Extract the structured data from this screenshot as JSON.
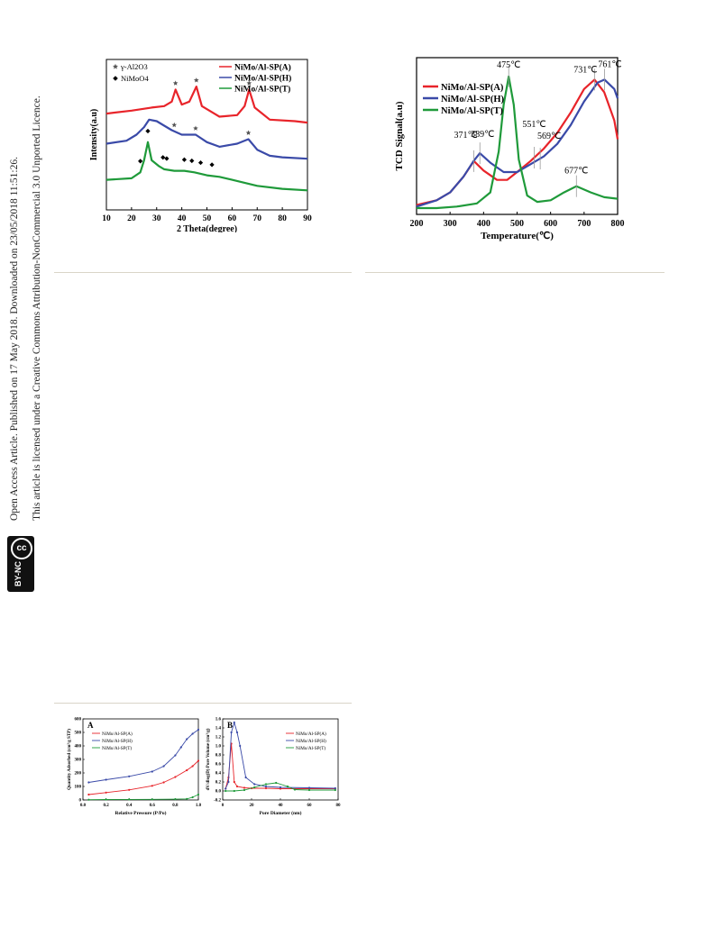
{
  "sidebar": {
    "line1": "Open Access Article. Published on 17 May 2018. Downloaded on 23/05/2018 11:51:26.",
    "line2": "This article is licensed under a Creative Commons Attribution-NonCommercial 3.0 Unported Licence.",
    "badge_cc": "cc",
    "badge_text": "BY-NC"
  },
  "colors": {
    "A": "#e8242a",
    "H": "#3a4aa8",
    "T": "#1f9a3a"
  },
  "chart_data": [
    {
      "id": "xrd",
      "type": "line",
      "xlabel": "2 Theta(degree)",
      "ylabel": "Intensity(a.u)",
      "xlim": [
        10,
        90
      ],
      "xticks": [
        "10",
        "20",
        "30",
        "40",
        "50",
        "60",
        "70",
        "80",
        "90"
      ],
      "legend_markers": [
        {
          "label": "γ-Al2O3",
          "symbol": "star"
        },
        {
          "label": "NiMoO4",
          "symbol": "diamond"
        }
      ],
      "series": [
        {
          "name": "NiMo/Al-SP(A)",
          "x": [
            10,
            20,
            28,
            33,
            36,
            37.5,
            40,
            43,
            45.8,
            48,
            55,
            62,
            65,
            66.8,
            69,
            75,
            85,
            90
          ],
          "y": [
            0.64,
            0.66,
            0.68,
            0.69,
            0.72,
            0.8,
            0.7,
            0.72,
            0.82,
            0.69,
            0.62,
            0.63,
            0.69,
            0.8,
            0.68,
            0.6,
            0.59,
            0.58
          ]
        },
        {
          "name": "NiMo/Al-SP(H)",
          "x": [
            10,
            18,
            22,
            25,
            27,
            30,
            33,
            36,
            40,
            45.5,
            50,
            55,
            62,
            66.5,
            70,
            75,
            80,
            90
          ],
          "y": [
            0.44,
            0.46,
            0.5,
            0.55,
            0.6,
            0.59,
            0.56,
            0.53,
            0.5,
            0.5,
            0.45,
            0.42,
            0.44,
            0.47,
            0.4,
            0.36,
            0.35,
            0.34
          ]
        },
        {
          "name": "NiMo/Al-SP(T)",
          "x": [
            10,
            20,
            23.5,
            25,
            26.5,
            28,
            31,
            33,
            37,
            41,
            45,
            50,
            55,
            60,
            65,
            70,
            80,
            90
          ],
          "y": [
            0.2,
            0.21,
            0.25,
            0.33,
            0.45,
            0.33,
            0.29,
            0.27,
            0.26,
            0.26,
            0.25,
            0.23,
            0.22,
            0.2,
            0.18,
            0.16,
            0.14,
            0.13
          ]
        }
      ],
      "star_x_A": [
        37.5,
        45.8,
        66.8
      ],
      "star_x_H": [
        37,
        45.5,
        66.5
      ],
      "diamond_x": [
        23.5,
        26.5,
        32.5,
        34,
        41,
        44,
        47.5,
        52
      ]
    },
    {
      "id": "tpr",
      "type": "line",
      "xlabel": "Temperature(℃)",
      "ylabel": "TCD Signal(a.u)",
      "xlim": [
        200,
        800
      ],
      "xticks": [
        "200",
        "300",
        "400",
        "500",
        "600",
        "700",
        "800"
      ],
      "series": [
        {
          "name": "NiMo/Al-SP(A)",
          "x": [
            200,
            260,
            300,
            340,
            371,
            400,
            440,
            470,
            500,
            540,
            580,
            620,
            660,
            700,
            731,
            760,
            790,
            800
          ],
          "y": [
            0.06,
            0.09,
            0.14,
            0.24,
            0.34,
            0.28,
            0.22,
            0.22,
            0.27,
            0.34,
            0.42,
            0.52,
            0.65,
            0.8,
            0.86,
            0.78,
            0.6,
            0.48
          ]
        },
        {
          "name": "NiMo/Al-SP(H)",
          "x": [
            200,
            260,
            300,
            340,
            370,
            389,
            420,
            460,
            500,
            540,
            580,
            620,
            660,
            700,
            740,
            761,
            790,
            800
          ],
          "y": [
            0.05,
            0.09,
            0.14,
            0.24,
            0.34,
            0.39,
            0.33,
            0.27,
            0.27,
            0.32,
            0.37,
            0.45,
            0.57,
            0.72,
            0.84,
            0.86,
            0.8,
            0.74
          ]
        },
        {
          "name": "NiMo/Al-SP(T)",
          "x": [
            200,
            260,
            320,
            380,
            420,
            445,
            460,
            475,
            490,
            505,
            530,
            560,
            600,
            640,
            677,
            720,
            760,
            800
          ],
          "y": [
            0.04,
            0.04,
            0.05,
            0.07,
            0.14,
            0.4,
            0.7,
            0.88,
            0.7,
            0.35,
            0.12,
            0.08,
            0.09,
            0.14,
            0.18,
            0.14,
            0.11,
            0.1
          ]
        }
      ],
      "annotations": [
        {
          "text": "371℃",
          "x": 371
        },
        {
          "text": "389℃",
          "x": 389
        },
        {
          "text": "475℃",
          "x": 475
        },
        {
          "text": "551℃",
          "x": 551
        },
        {
          "text": "569℃",
          "x": 569
        },
        {
          "text": "677℃",
          "x": 677
        },
        {
          "text": "731℃",
          "x": 731
        },
        {
          "text": "761℃",
          "x": 761
        }
      ]
    },
    {
      "id": "iso",
      "type": "line",
      "panel": "A",
      "xlabel": "Relative Pressure (P/Po)",
      "ylabel": "Quantity Adsorbed (cm³/g STP)",
      "xlim": [
        0,
        1
      ],
      "ylim": [
        0,
        600
      ],
      "xticks": [
        "0.0",
        "0.2",
        "0.4",
        "0.6",
        "0.8",
        "1.0"
      ],
      "yticks": [
        "0",
        "100",
        "200",
        "300",
        "400",
        "500",
        "600"
      ],
      "series": [
        {
          "name": "NiMo/Al-SP(A)",
          "x": [
            0.05,
            0.2,
            0.4,
            0.6,
            0.7,
            0.8,
            0.9,
            0.95,
            1.0
          ],
          "y": [
            40,
            55,
            75,
            105,
            130,
            170,
            220,
            250,
            290
          ]
        },
        {
          "name": "NiMo/Al-SP(H)",
          "x": [
            0.05,
            0.2,
            0.4,
            0.6,
            0.7,
            0.8,
            0.85,
            0.9,
            0.95,
            1.0
          ],
          "y": [
            130,
            150,
            175,
            210,
            250,
            330,
            390,
            450,
            490,
            520
          ]
        },
        {
          "name": "NiMo/Al-SP(T)",
          "x": [
            0.05,
            0.2,
            0.4,
            0.6,
            0.8,
            0.9,
            0.95,
            1.0
          ],
          "y": [
            2,
            3,
            4,
            5,
            6,
            8,
            20,
            40
          ]
        }
      ]
    },
    {
      "id": "psd",
      "type": "line",
      "panel": "B",
      "xlabel": "Pore Diameter (nm)",
      "ylabel": "dV/dlog(D) Pore Volume (cm³/g)",
      "xlim": [
        0,
        80
      ],
      "ylim": [
        -0.2,
        1.6
      ],
      "xticks": [
        "0",
        "20",
        "40",
        "60",
        "80"
      ],
      "yticks": [
        "-0.2",
        "0.0",
        "0.2",
        "0.4",
        "0.6",
        "0.8",
        "1.0",
        "1.2",
        "1.4",
        "1.6"
      ],
      "series": [
        {
          "name": "NiMo/Al-SP(A)",
          "x": [
            2,
            4,
            6,
            8,
            10,
            15,
            20,
            30,
            40,
            60,
            78
          ],
          "y": [
            0.05,
            0.3,
            1.05,
            0.2,
            0.1,
            0.07,
            0.06,
            0.06,
            0.05,
            0.05,
            0.05
          ]
        },
        {
          "name": "NiMo/Al-SP(H)",
          "x": [
            2,
            4,
            6,
            8,
            10,
            12,
            16,
            22,
            30,
            40,
            60,
            78
          ],
          "y": [
            0.05,
            0.2,
            1.3,
            1.52,
            1.3,
            1.0,
            0.3,
            0.15,
            0.1,
            0.08,
            0.07,
            0.06
          ]
        },
        {
          "name": "NiMo/Al-SP(T)",
          "x": [
            2,
            8,
            15,
            22,
            30,
            37,
            45,
            50,
            60,
            78
          ],
          "y": [
            0.0,
            0.0,
            0.02,
            0.08,
            0.15,
            0.18,
            0.1,
            0.03,
            0.02,
            0.02
          ]
        }
      ]
    }
  ]
}
